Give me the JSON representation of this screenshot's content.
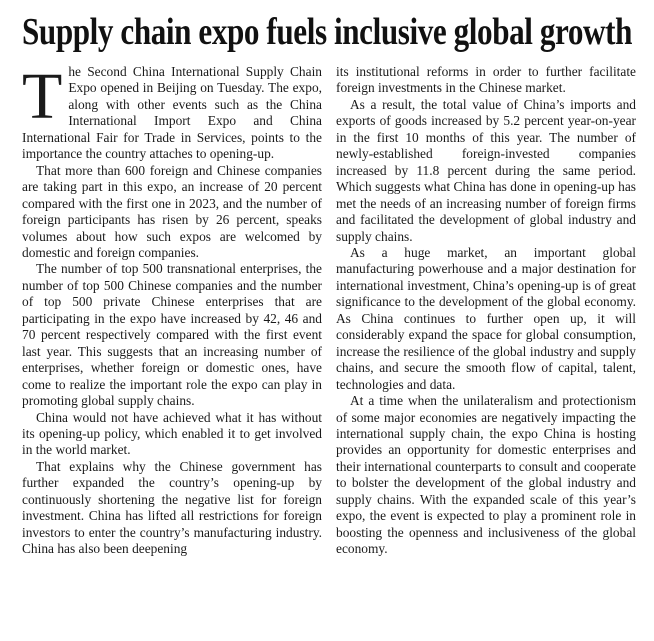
{
  "header": {
    "title": "Supply chain expo fuels inclusive global growth"
  },
  "columns": [
    {
      "drop_cap": "T",
      "paragraphs": [
        "he Second China International Supply Chain Expo opened in Beijing on Tuesday. The expo, along with other events such as the China International Import Expo and China International Fair for Trade in Services, points to the importance the country attaches to opening-up.",
        "That more than 600 foreign and Chinese companies are taking part in this expo, an increase of 20 percent compared with the first one in 2023, and the number of foreign participants has risen by 26 percent, speaks volumes about how such expos are welcomed by domestic and foreign companies.",
        "The number of top 500 transnational enterprises, the number of top 500 Chinese companies and the number of top 500 private Chinese enterprises that are participating in the expo have increased by 42, 46 and 70 percent respectively compared with the first event last year. This suggests that an increasing number of enterprises, whether foreign or domestic ones, have come to realize the important role the expo can play in promoting global supply chains.",
        "China would not have achieved what it has without its opening-up policy, which enabled it to get involved in the world market.",
        "That explains why the Chinese government has further expanded the country’s opening-up by continuously shortening the negative list for foreign investment. China has lifted all restrictions for foreign investors to enter the country’s manufacturing industry. China has also been deepening"
      ]
    },
    {
      "paragraphs": [
        "its institutional reforms in order to further facilitate foreign investments in the Chinese market.",
        "As a result, the total value of China’s imports and exports of goods increased by 5.2 percent year-on-year in the first 10 months of this year. The number of newly-established foreign-invested companies increased by 11.8 percent during the same period. Which suggests what China has done in opening-up has met the needs of an increasing number of foreign firms and facilitated the development of global industry and supply chains.",
        "As a huge market, an important global manufacturing powerhouse and a major destination for international investment, China’s opening-up is of great significance to the development of the global economy. As China continues to further open up, it will considerably expand the space for global consumption, increase the resilience of the global industry and supply chains, and secure the smooth flow of capital, talent, technologies and data.",
        "At a time when the unilateralism and protectionism of some major economies are negatively impacting the international supply chain, the expo China is hosting provides an opportunity for domestic enterprises and their international counterparts to consult and cooperate to bolster the development of the global industry and supply chains. With the expanded scale of this year’s expo, the event is expected to play a prominent role in boosting the openness and inclusiveness of the global economy."
      ]
    }
  ]
}
